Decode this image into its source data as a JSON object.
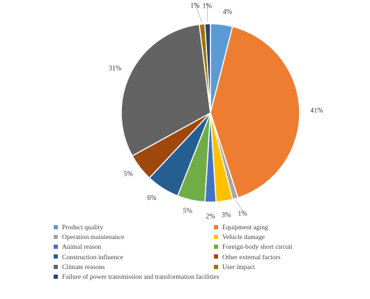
{
  "chart_data": {
    "type": "pie",
    "categories": [
      "Product quality",
      "Equipment aging",
      "Operation maintenance",
      "Vehicle damage",
      "Animal reason",
      "Foreign-body short circuit",
      "Construction influence",
      "Other external factors",
      "Climate reasons",
      "User impact",
      "Failure of power transmission and transformation facilities"
    ],
    "values": [
      4,
      41,
      1,
      3,
      2,
      5,
      6,
      5,
      31,
      1,
      1
    ],
    "labels": [
      "4%",
      "41%",
      "1%",
      "3%",
      "2%",
      "5%",
      "6%",
      "5%",
      "31%",
      "1%",
      "1%"
    ],
    "colors": [
      "#5b9bd5",
      "#ed7d31",
      "#a5a5a5",
      "#ffc000",
      "#4472c4",
      "#70ad47",
      "#255e91",
      "#9e480e",
      "#636363",
      "#997300",
      "#264478"
    ],
    "legend_position": "bottom"
  }
}
